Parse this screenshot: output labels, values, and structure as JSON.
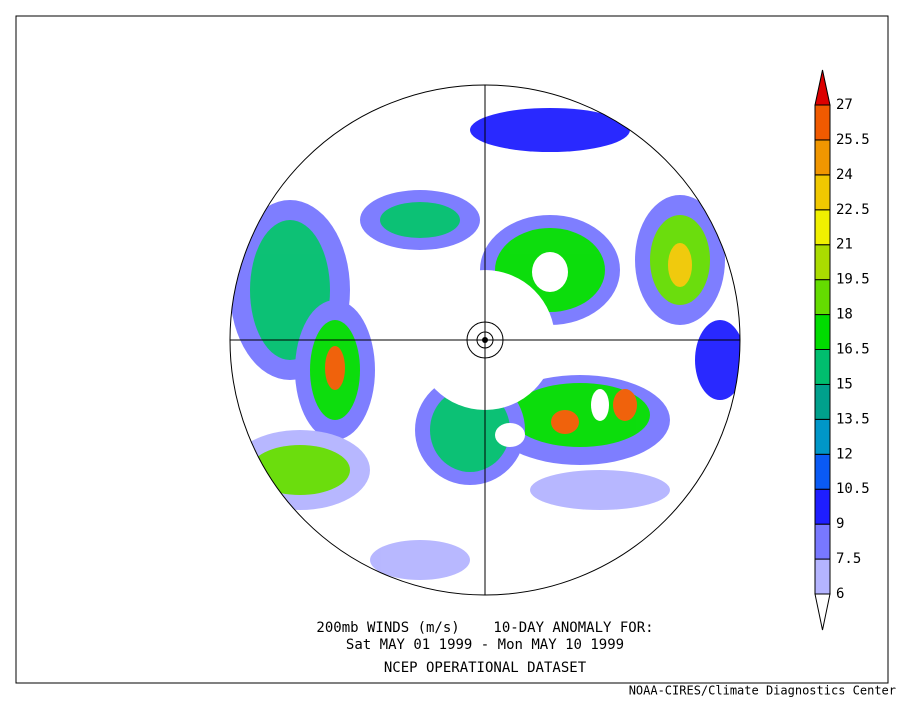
{
  "title_line1": "200mb WINDS (m/s)    10-DAY ANOMALY FOR:",
  "title_line2": "Sat MAY 01 1999 - Mon MAY 10 1999",
  "dataset": "NCEP OPERATIONAL DATASET",
  "credit": "NOAA-CIRES/Climate Diagnostics Center",
  "colorbar": {
    "levels": [
      6,
      7.5,
      9,
      10.5,
      12,
      13.5,
      15,
      16.5,
      18,
      19.5,
      21,
      22.5,
      24,
      25.5,
      27
    ],
    "colors": [
      "#ffffff",
      "#b4b4ff",
      "#7878ff",
      "#1e1eff",
      "#0a5af5",
      "#0096c8",
      "#00a08c",
      "#00be6e",
      "#00dc00",
      "#64dc00",
      "#aadc00",
      "#f0f000",
      "#f0c800",
      "#f09600",
      "#f05a00",
      "#dc0000"
    ]
  }
}
